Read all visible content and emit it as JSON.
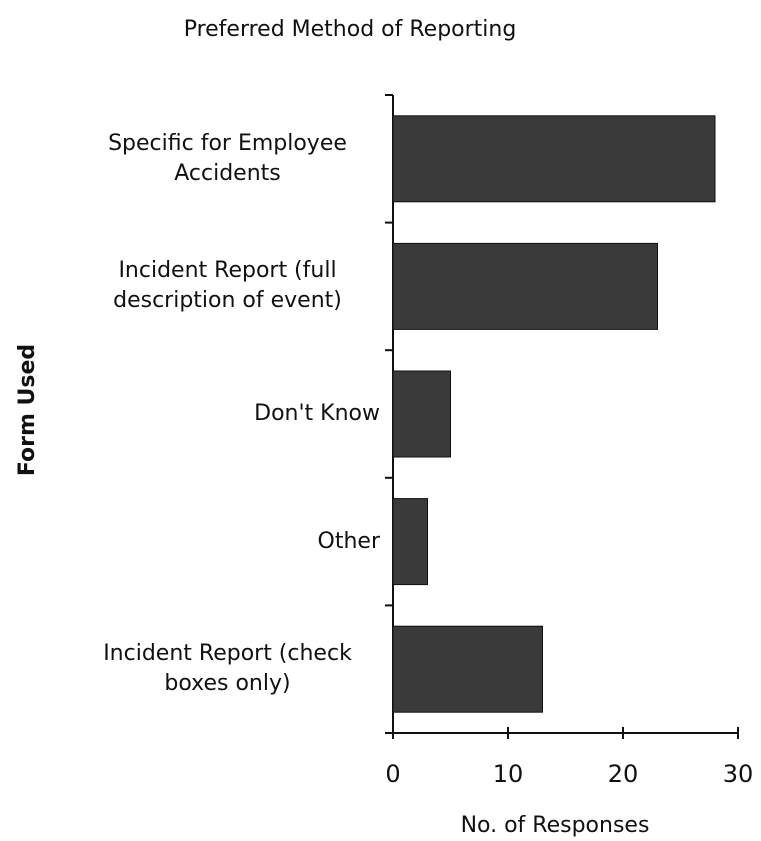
{
  "chart_data": {
    "type": "bar",
    "orientation": "horizontal",
    "title": "Preferred Method of Reporting",
    "x_label": "No. of Responses",
    "y_label": "Form Used",
    "categories": [
      "Specific for Employee Accidents",
      "Incident Report (full description of event)",
      "Don't Know",
      "Other",
      "Incident Report (check boxes only)"
    ],
    "values": [
      28,
      23,
      5,
      3,
      13
    ],
    "color": "#3a3a3a",
    "xlim": [
      0,
      30
    ],
    "xticks": [
      0,
      10,
      20,
      30
    ],
    "grid": false
  }
}
